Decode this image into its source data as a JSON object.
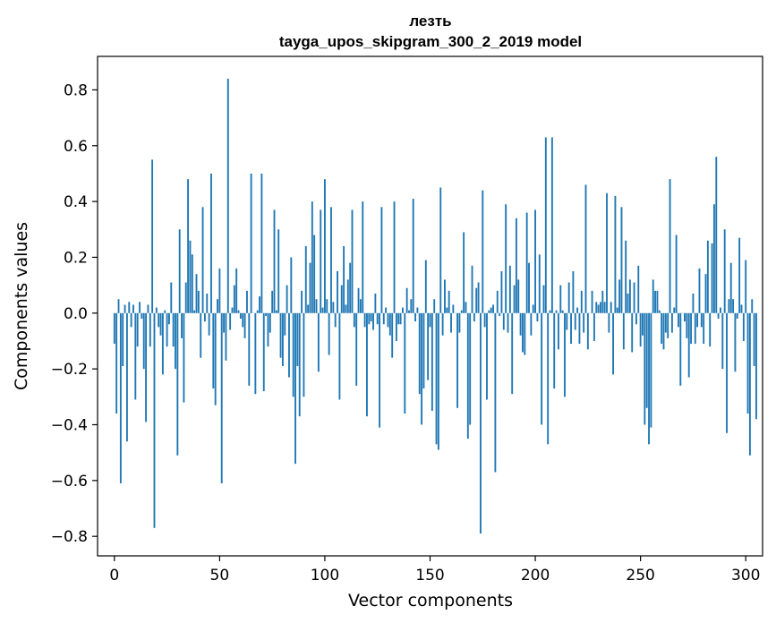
{
  "chart_data": {
    "type": "bar",
    "title": "лезть",
    "subtitle": "tayga_upos_skipgram_300_2_2019 model",
    "xlabel": "Vector components",
    "ylabel": "Components values",
    "xlim": [
      -8,
      308
    ],
    "ylim": [
      -0.87,
      0.92
    ],
    "x_ticks": [
      0,
      50,
      100,
      150,
      200,
      250,
      300
    ],
    "y_ticks": [
      -0.8,
      -0.6,
      -0.4,
      -0.2,
      0.0,
      0.2,
      0.4,
      0.6,
      0.8
    ],
    "y_tick_labels": [
      "−0.8",
      "−0.6",
      "−0.4",
      "−0.2",
      "0.0",
      "0.2",
      "0.4",
      "0.6",
      "0.8"
    ],
    "bar_color": "#1f77b4",
    "grid": false,
    "values": [
      -0.11,
      -0.36,
      0.05,
      -0.61,
      -0.19,
      0.03,
      -0.46,
      0.04,
      -0.05,
      0.03,
      -0.31,
      -0.12,
      0.04,
      -0.02,
      -0.2,
      -0.39,
      0.03,
      -0.12,
      0.55,
      -0.77,
      0.02,
      -0.05,
      -0.08,
      -0.22,
      0.01,
      -0.12,
      -0.04,
      0.11,
      -0.12,
      -0.2,
      -0.51,
      0.3,
      -0.09,
      -0.32,
      0.11,
      0.48,
      0.26,
      0.21,
      0.01,
      0.14,
      0.08,
      -0.16,
      0.38,
      -0.03,
      0.07,
      -0.08,
      0.5,
      -0.27,
      -0.33,
      0.05,
      0.16,
      -0.61,
      -0.07,
      -0.17,
      0.84,
      -0.06,
      0.02,
      0.1,
      0.16,
      0.01,
      -0.02,
      -0.05,
      -0.09,
      0.08,
      -0.26,
      0.5,
      0.0,
      -0.29,
      0.01,
      0.06,
      0.5,
      -0.28,
      -0.01,
      -0.12,
      -0.07,
      0.08,
      0.37,
      0.01,
      0.3,
      -0.16,
      -0.19,
      -0.08,
      0.1,
      -0.23,
      0.2,
      -0.3,
      -0.54,
      -0.19,
      -0.37,
      0.08,
      -0.3,
      0.24,
      0.03,
      0.18,
      0.4,
      0.28,
      0.05,
      -0.21,
      0.37,
      0.02,
      0.48,
      0.05,
      -0.15,
      0.38,
      0.04,
      -0.05,
      0.15,
      -0.31,
      0.1,
      0.24,
      0.03,
      0.12,
      0.18,
      0.37,
      -0.05,
      -0.26,
      0.09,
      0.05,
      0.4,
      -0.05,
      -0.37,
      -0.04,
      -0.03,
      -0.06,
      0.07,
      -0.04,
      -0.41,
      0.38,
      -0.04,
      0.02,
      -0.05,
      -0.08,
      -0.16,
      0.4,
      -0.1,
      -0.04,
      -0.04,
      0.02,
      -0.36,
      0.09,
      0.01,
      0.05,
      0.41,
      -0.03,
      0.02,
      -0.29,
      -0.4,
      -0.27,
      0.19,
      -0.24,
      -0.05,
      -0.35,
      0.05,
      -0.47,
      -0.49,
      0.45,
      -0.08,
      0.12,
      0.02,
      0.08,
      -0.07,
      0.03,
      0.0,
      -0.34,
      -0.07,
      0.01,
      0.29,
      0.04,
      -0.45,
      -0.4,
      0.17,
      -0.03,
      0.09,
      0.11,
      -0.79,
      0.44,
      -0.05,
      -0.31,
      0.01,
      0.02,
      0.03,
      -0.57,
      0.08,
      -0.01,
      0.15,
      -0.06,
      0.39,
      -0.07,
      0.17,
      -0.29,
      0.1,
      0.34,
      0.12,
      -0.08,
      -0.14,
      -0.15,
      0.36,
      0.18,
      -0.08,
      0.03,
      0.37,
      -0.03,
      0.21,
      -0.4,
      0.1,
      0.63,
      -0.47,
      0.01,
      0.63,
      -0.27,
      0.01,
      -0.13,
      0.1,
      0.01,
      -0.3,
      -0.06,
      0.11,
      -0.11,
      0.15,
      -0.06,
      0.02,
      -0.11,
      0.08,
      -0.07,
      0.46,
      -0.13,
      0.0,
      0.08,
      -0.1,
      0.04,
      0.03,
      0.04,
      0.08,
      0.04,
      0.43,
      -0.07,
      0.04,
      -0.22,
      0.42,
      0.02,
      0.12,
      0.38,
      -0.13,
      0.26,
      0.07,
      0.12,
      -0.14,
      0.11,
      -0.04,
      0.17,
      -0.12,
      -0.08,
      -0.4,
      -0.34,
      -0.47,
      -0.41,
      0.12,
      0.08,
      0.08,
      0.01,
      -0.11,
      -0.13,
      -0.07,
      -0.09,
      0.48,
      -0.07,
      0.02,
      0.28,
      -0.05,
      -0.26,
      0.0,
      -0.03,
      -0.09,
      -0.23,
      -0.11,
      0.07,
      -0.11,
      -0.05,
      0.16,
      -0.05,
      -0.11,
      0.14,
      0.26,
      -0.12,
      0.25,
      0.39,
      0.56,
      -0.02,
      0.02,
      -0.2,
      0.3,
      -0.43,
      0.05,
      0.18,
      0.05,
      -0.21,
      -0.02,
      0.27,
      0.03,
      -0.1,
      0.19,
      -0.36,
      -0.51,
      0.05,
      -0.19,
      -0.38
    ]
  }
}
